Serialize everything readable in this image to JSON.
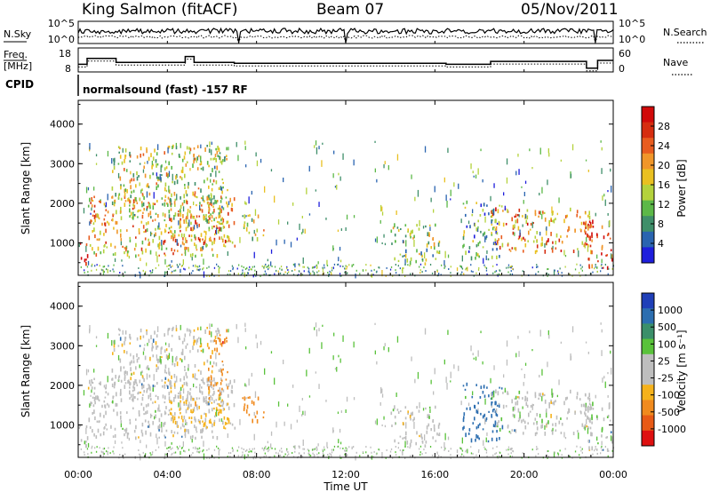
{
  "header": {
    "station": "King Salmon (fitACF)",
    "beam": "Beam 07",
    "date": "05/Nov/2011"
  },
  "summary": {
    "nsky_label": "N.Sky",
    "nsearch_label": "N.Search",
    "nsky_ticks": [
      "10^5",
      "10^0"
    ],
    "nsearch_ticks": [
      "10^5",
      "10^0"
    ],
    "freq_label": "Freq.",
    "freq_unit": "[MHz]",
    "freq_ticks": [
      "18",
      "8"
    ],
    "nave_label": "Nave",
    "nave_ticks": [
      "60",
      "0"
    ],
    "cpid_label": "CPID",
    "cpid_text": "normalsound (fast) -157 RF"
  },
  "axes": {
    "y_label": "Slant Range [km]",
    "y_ticks": [
      "4000",
      "3000",
      "2000",
      "1000"
    ],
    "x_label": "Time UT",
    "x_ticks": [
      "00:00",
      "04:00",
      "08:00",
      "12:00",
      "16:00",
      "20:00",
      "00:00"
    ]
  },
  "colorbars": {
    "power": {
      "label": "Power [dB]",
      "ticks": [
        "28",
        "24",
        "20",
        "16",
        "12",
        "8",
        "4"
      ],
      "colors": [
        "#1e1edc",
        "#2a64b0",
        "#3f8f6a",
        "#5cb848",
        "#b4d23c",
        "#e9c021",
        "#f0962a",
        "#e85c1f",
        "#d62d10",
        "#d10a0a"
      ]
    },
    "velocity": {
      "label": "Velocity [m s⁻¹]",
      "ticks": [
        "1000",
        "500",
        "100",
        "25",
        "-25",
        "-100",
        "-500",
        "-1000"
      ],
      "colors": [
        "#1f3fb8",
        "#2c6eb0",
        "#3b8f6a",
        "#59c23a",
        "#bebebe",
        "#bebebe",
        "#f5b21c",
        "#f08a1e",
        "#e85a16",
        "#de1010"
      ]
    }
  },
  "chart_data": {
    "type": "heatmap",
    "x_range": [
      "00:00",
      "24:00"
    ],
    "y_range_km": [
      180,
      4600
    ],
    "power_range_db": [
      0,
      30
    ],
    "velocity_range_ms": [
      -1000,
      1000
    ],
    "echo_regions": [
      {
        "t0": 0.0,
        "t1": 0.4,
        "r0": 380,
        "r1": 1100,
        "power_db": 28,
        "velocity_ms": -30
      },
      {
        "t0": 0.4,
        "t1": 7.0,
        "r0": 700,
        "r1": 2200,
        "power_db": 18,
        "velocity_ms": -40
      },
      {
        "t0": 1.5,
        "t1": 6.5,
        "r0": 1500,
        "r1": 3500,
        "power_db": 14,
        "velocity_ms": -60
      },
      {
        "t0": 4.0,
        "t1": 6.8,
        "r0": 900,
        "r1": 1700,
        "power_db": 20,
        "velocity_ms": -300
      },
      {
        "t0": 5.8,
        "t1": 6.7,
        "r0": 1700,
        "r1": 3500,
        "power_db": 12,
        "velocity_ms": -600
      },
      {
        "t0": 7.3,
        "t1": 8.3,
        "r0": 1100,
        "r1": 1800,
        "power_db": 14,
        "velocity_ms": -700
      },
      {
        "t0": 14.0,
        "t1": 16.3,
        "r0": 500,
        "r1": 1500,
        "power_db": 12,
        "velocity_ms": -20
      },
      {
        "t0": 17.2,
        "t1": 19.0,
        "r0": 600,
        "r1": 2100,
        "power_db": 10,
        "velocity_ms": 200
      },
      {
        "t0": 18.5,
        "t1": 23.0,
        "r0": 800,
        "r1": 1900,
        "power_db": 20,
        "velocity_ms": -30
      },
      {
        "t0": 22.7,
        "t1": 24.0,
        "r0": 380,
        "r1": 1600,
        "power_db": 26,
        "velocity_ms": -20
      }
    ],
    "frequency_mhz": {
      "min": 8,
      "max": 18,
      "typical": 12
    },
    "nave": {
      "min": 0,
      "max": 60,
      "typical": 20
    }
  }
}
